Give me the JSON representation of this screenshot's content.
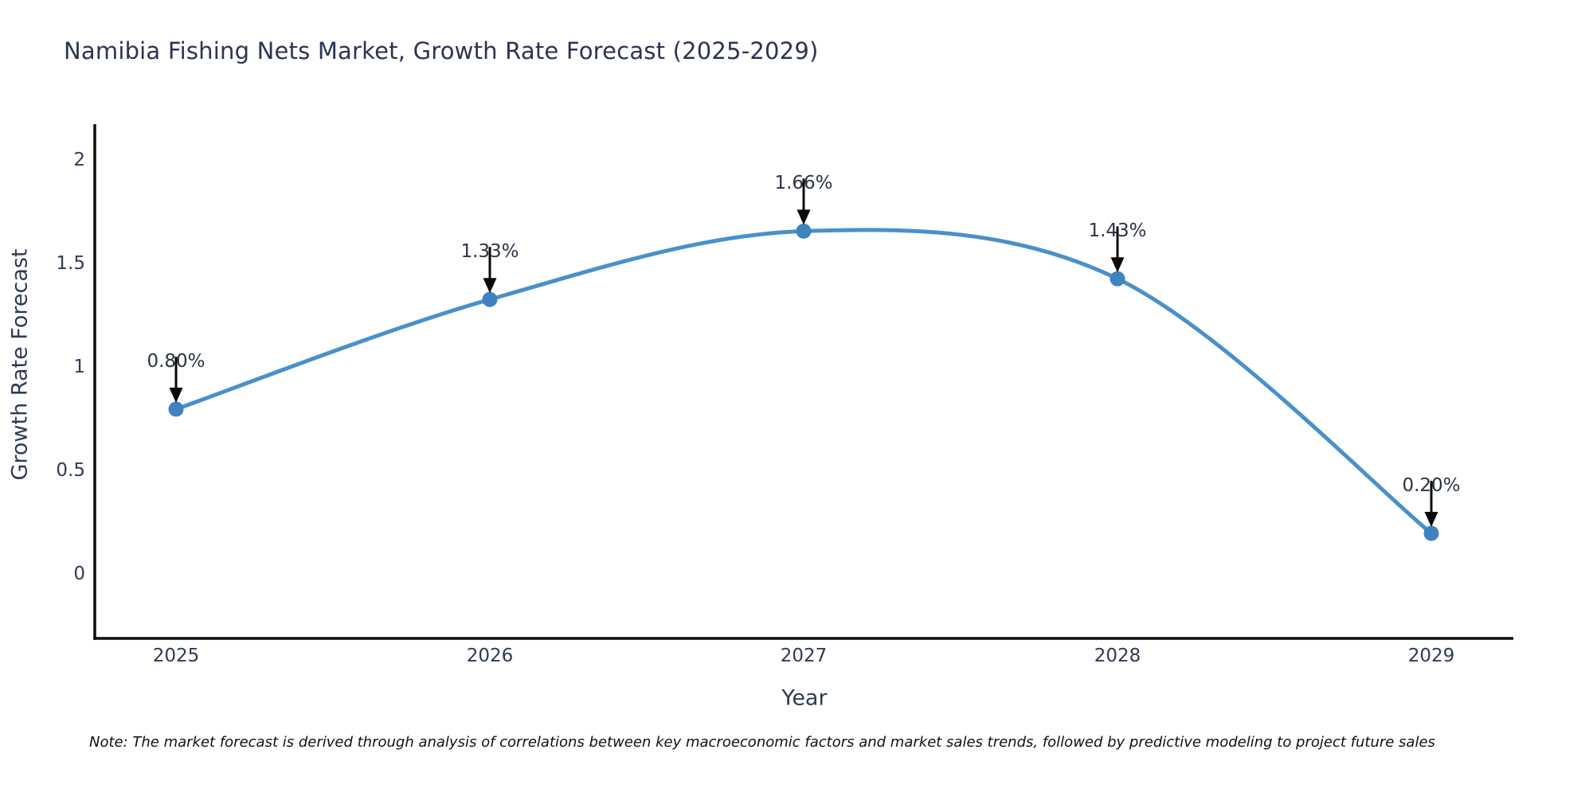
{
  "chart_data": {
    "type": "line",
    "line_shape": "spline",
    "title": "Namibia Fishing Nets Market, Growth Rate Forecast (2025-2029)",
    "xlabel": "Year",
    "ylabel": "Growth Rate Forecast",
    "categories": [
      "2025",
      "2026",
      "2027",
      "2028",
      "2029"
    ],
    "series": [
      {
        "name": "Growth Rate Forecast",
        "values": [
          0.8,
          1.33,
          1.66,
          1.43,
          0.2
        ]
      }
    ],
    "point_labels": [
      "0.80%",
      "1.33%",
      "1.66%",
      "1.43%",
      "0.20%"
    ],
    "y_ticks": [
      {
        "value": 0,
        "label": "0"
      },
      {
        "value": 0.5,
        "label": "0.5"
      },
      {
        "value": 1,
        "label": "1"
      },
      {
        "value": 1.5,
        "label": "1.5"
      },
      {
        "value": 2,
        "label": "2"
      }
    ],
    "ylim": [
      -0.31,
      2.17
    ],
    "grid": false,
    "legend": "none",
    "note": "Note: The market forecast is derived through analysis of correlations between key macroeconomic factors and market sales trends, followed by predictive modeling to project future sales",
    "colors": {
      "line": "#4a90c9",
      "marker": "#3d83bf",
      "axis": "#0d0d0d",
      "arrow": "#0a0a0a",
      "text": "#2f3a54",
      "title_text": "#2b3452",
      "annotation_text": "#2c3347",
      "note_text": "#101010",
      "background": "#ffffff"
    }
  }
}
